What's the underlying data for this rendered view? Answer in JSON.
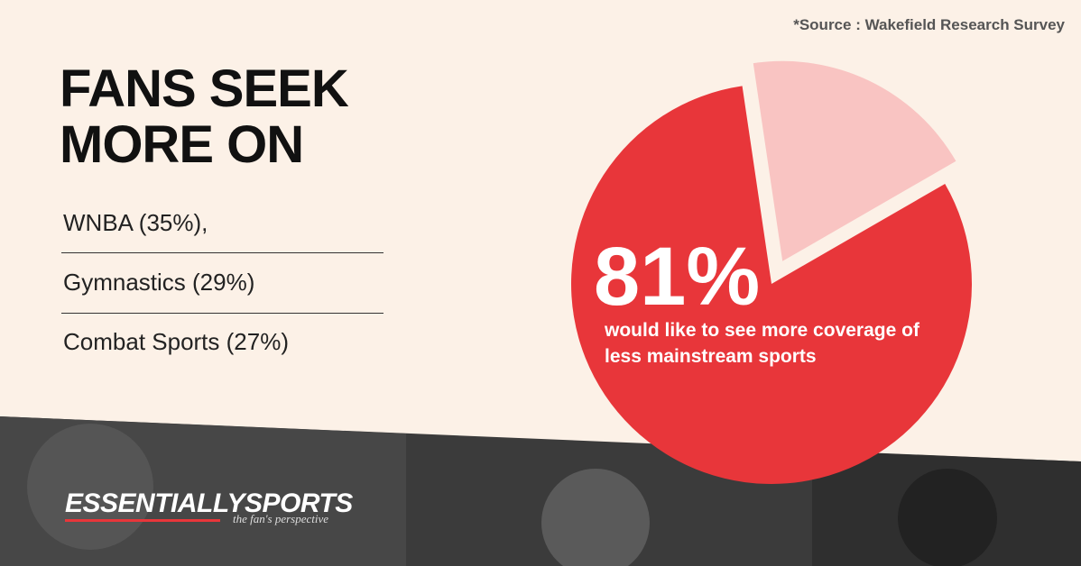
{
  "chart_data": {
    "type": "pie",
    "title": "FANS SEEK MORE ON",
    "source": "*Source : Wakefield Research Survey",
    "list": [
      "WNBA (35%),",
      "Gymnastics (29%)",
      "Combat Sports (27%)"
    ],
    "values": [
      81,
      19
    ],
    "value_labels": [
      "81%",
      null
    ],
    "colors": [
      "#e8363a",
      "#f9c4c2"
    ],
    "caption": "would like to see more coverage of less mainstream sports",
    "brand": {
      "name": "ESSENTIALLYSPORTS",
      "tagline": "the fan's perspective"
    }
  }
}
